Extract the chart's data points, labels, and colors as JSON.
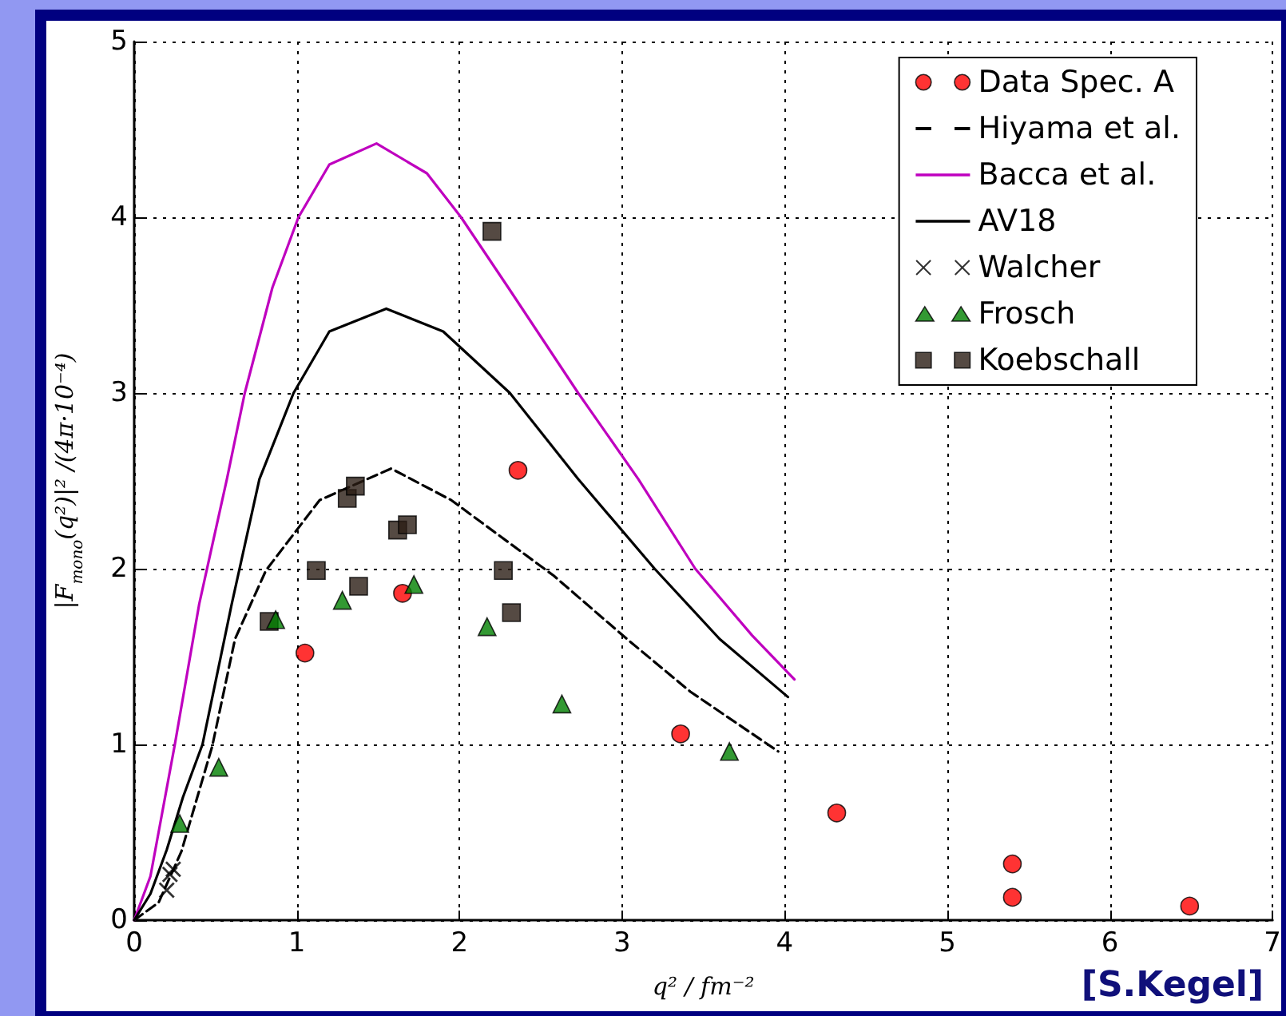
{
  "chart_data": {
    "type": "scatter",
    "xlabel": "q² / fm⁻²",
    "ylabel": "|F$_{mono}$(q²)|² /(4π·10⁻⁴)",
    "xlim": [
      0,
      7
    ],
    "xticks": [
      0,
      1,
      2,
      3,
      4,
      5,
      6,
      7
    ],
    "ylim": [
      0,
      5
    ],
    "yticks": [
      0,
      1,
      2,
      3,
      4,
      5
    ],
    "grid": true,
    "legend": "top right",
    "annotations": [
      "[S.Kegel]"
    ],
    "series": [
      {
        "name": "Data Spec. A",
        "marker": "circle",
        "color": "#ff0000",
        "x": [
          1.05,
          1.65,
          2.36,
          3.36,
          4.32,
          5.4,
          5.4,
          6.49
        ],
        "values": [
          1.52,
          1.86,
          2.56,
          1.06,
          0.61,
          0.32,
          0.13,
          0.08
        ]
      },
      {
        "name": "Hiyama et al.",
        "type": "line",
        "marker": "none",
        "line_style": "dashed",
        "color": "#000000",
        "x": [
          0,
          0.15,
          0.29,
          0.48,
          0.62,
          0.81,
          1.14,
          1.58,
          1.95,
          2.58,
          3.03,
          3.42,
          3.96
        ],
        "values": [
          0,
          0.1,
          0.39,
          0.99,
          1.6,
          1.99,
          2.39,
          2.57,
          2.39,
          1.96,
          1.6,
          1.3,
          0.96
        ]
      },
      {
        "name": "Bacca et al.",
        "type": "line",
        "marker": "none",
        "line_style": "solid",
        "color": "#bf00bf",
        "x": [
          0,
          0.1,
          0.25,
          0.4,
          0.57,
          0.68,
          0.85,
          1.01,
          1.2,
          1.49,
          1.8,
          2.01,
          2.3,
          2.73,
          3.1,
          3.45,
          3.8,
          4.06
        ],
        "values": [
          0,
          0.25,
          1.0,
          1.8,
          2.51,
          3.0,
          3.6,
          4.0,
          4.3,
          4.42,
          4.25,
          4.0,
          3.6,
          3.0,
          2.51,
          2.0,
          1.62,
          1.37
        ]
      },
      {
        "name": "AV18",
        "type": "line",
        "marker": "none",
        "line_style": "solid",
        "color": "#000000",
        "x": [
          0,
          0.1,
          0.2,
          0.3,
          0.42,
          0.6,
          0.77,
          0.98,
          1.2,
          1.55,
          1.9,
          2.31,
          2.73,
          3.2,
          3.6,
          4.02
        ],
        "values": [
          0,
          0.15,
          0.4,
          0.7,
          1.0,
          1.8,
          2.51,
          3.0,
          3.35,
          3.48,
          3.35,
          3.0,
          2.51,
          2.0,
          1.6,
          1.27
        ]
      },
      {
        "name": "Walcher",
        "marker": "cross",
        "color": "#000000",
        "x": [
          0.2,
          0.22,
          0.24
        ],
        "values": [
          0.17,
          0.26,
          0.29
        ]
      },
      {
        "name": "Frosch",
        "marker": "triangle",
        "color": "#007f00",
        "x": [
          0.28,
          0.52,
          0.87,
          1.28,
          1.72,
          2.17,
          2.63,
          3.66
        ],
        "values": [
          0.55,
          0.87,
          1.71,
          1.82,
          1.91,
          1.67,
          1.23,
          0.96
        ]
      },
      {
        "name": "Koebschall",
        "marker": "square",
        "color": "#2b1d14",
        "x": [
          2.2,
          0.83,
          1.12,
          1.31,
          1.36,
          1.38,
          1.62,
          1.68,
          2.27,
          2.32
        ],
        "values": [
          3.92,
          1.7,
          1.99,
          2.4,
          2.47,
          1.9,
          2.22,
          2.25,
          1.99,
          1.75
        ]
      }
    ]
  }
}
